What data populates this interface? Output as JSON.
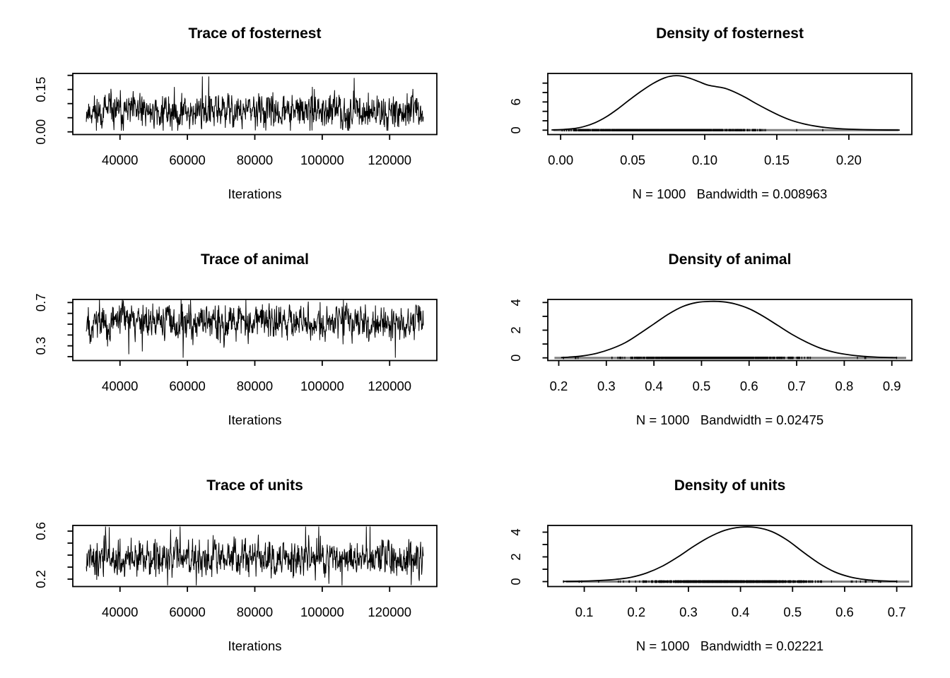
{
  "figure": {
    "background": "#ffffff",
    "line_color": "#000000",
    "rug_line_color": "#7f7f7f",
    "text_color": "#000000"
  },
  "chart_data": [
    {
      "id": "trace-fosternest",
      "type": "line",
      "kind": "trace",
      "title": "Trace of fosternest",
      "xlabel": "Iterations",
      "grid": false,
      "xlim": [
        26000,
        134000
      ],
      "ylim": [
        -0.0095,
        0.20675
      ],
      "x_ticks": [
        40000,
        60000,
        80000,
        100000,
        120000
      ],
      "x_tick_labels": [
        "40000",
        "60000",
        "80000",
        "100000",
        "120000"
      ],
      "y_ticks": [
        0.0,
        0.05,
        0.1,
        0.15,
        0.2
      ],
      "y_tick_labels": [
        "0.00",
        "",
        "",
        "0.15",
        ""
      ],
      "series_stats": {
        "n": 1000,
        "x_start": 30000,
        "x_end": 130000,
        "mean": 0.072,
        "spread": 0.058,
        "min": 0.004,
        "max": 0.196,
        "autocorr": 0.25,
        "seed": 11
      }
    },
    {
      "id": "density-fosternest",
      "type": "line",
      "kind": "density",
      "title": "Density of fosternest",
      "sublabel": "N = 1000   Bandwidth = 0.008963",
      "n": 1000,
      "bandwidth": 0.008963,
      "grid": false,
      "xlim": [
        -0.0089,
        0.2437
      ],
      "ylim": [
        -0.93,
        12.06
      ],
      "x_ticks": [
        0.0,
        0.05,
        0.1,
        0.15,
        0.2
      ],
      "x_tick_labels": [
        "0.00",
        "0.05",
        "0.10",
        "0.15",
        "0.20"
      ],
      "y_ticks": [
        0,
        2,
        4,
        6,
        8,
        10
      ],
      "y_tick_labels": [
        "0",
        "",
        "",
        "6",
        "",
        ""
      ],
      "curve": [
        [
          -0.006,
          0.05
        ],
        [
          0.0,
          0.12
        ],
        [
          0.008,
          0.3
        ],
        [
          0.016,
          0.75
        ],
        [
          0.024,
          1.6
        ],
        [
          0.032,
          2.9
        ],
        [
          0.04,
          4.6
        ],
        [
          0.048,
          6.5
        ],
        [
          0.056,
          8.3
        ],
        [
          0.064,
          9.9
        ],
        [
          0.072,
          11.1
        ],
        [
          0.078,
          11.55
        ],
        [
          0.084,
          11.5
        ],
        [
          0.09,
          11.0
        ],
        [
          0.096,
          10.3
        ],
        [
          0.102,
          9.6
        ],
        [
          0.108,
          9.25
        ],
        [
          0.114,
          8.9
        ],
        [
          0.12,
          8.2
        ],
        [
          0.128,
          7.0
        ],
        [
          0.136,
          5.6
        ],
        [
          0.144,
          4.3
        ],
        [
          0.152,
          3.1
        ],
        [
          0.16,
          2.1
        ],
        [
          0.168,
          1.4
        ],
        [
          0.176,
          0.9
        ],
        [
          0.184,
          0.55
        ],
        [
          0.192,
          0.35
        ],
        [
          0.2,
          0.22
        ],
        [
          0.21,
          0.12
        ],
        [
          0.22,
          0.06
        ],
        [
          0.235,
          0.02
        ]
      ],
      "rug": {
        "n": 1000,
        "mean": 0.072,
        "spread": 0.058,
        "min": 0.001,
        "max": 0.205,
        "seed": 22
      },
      "rug_line_span": [
        -0.005,
        0.2345
      ]
    },
    {
      "id": "trace-animal",
      "type": "line",
      "kind": "trace",
      "title": "Trace of animal",
      "xlabel": "Iterations",
      "grid": false,
      "xlim": [
        26000,
        134000
      ],
      "ylim": [
        0.1641,
        0.7284
      ],
      "x_ticks": [
        40000,
        60000,
        80000,
        100000,
        120000
      ],
      "x_tick_labels": [
        "40000",
        "60000",
        "80000",
        "100000",
        "120000"
      ],
      "y_ticks": [
        0.2,
        0.3,
        0.4,
        0.5,
        0.6,
        0.7
      ],
      "y_tick_labels": [
        "",
        "0.3",
        "",
        "",
        "",
        "0.7"
      ],
      "series_stats": {
        "n": 1000,
        "x_start": 30000,
        "x_end": 130000,
        "mean": 0.52,
        "spread": 0.155,
        "min": 0.19,
        "max": 0.732,
        "autocorr": 0.25,
        "seed": 33
      }
    },
    {
      "id": "density-animal",
      "type": "line",
      "kind": "density",
      "title": "Density of animal",
      "sublabel": "N = 1000   Bandwidth = 0.02475",
      "n": 1000,
      "bandwidth": 0.02475,
      "grid": false,
      "xlim": [
        0.177,
        0.942
      ],
      "ylim": [
        -0.194,
        4.22
      ],
      "x_ticks": [
        0.2,
        0.3,
        0.4,
        0.5,
        0.6,
        0.7,
        0.8,
        0.9
      ],
      "x_tick_labels": [
        "0.2",
        "0.3",
        "0.4",
        "0.5",
        "0.6",
        "0.7",
        "0.8",
        "0.9"
      ],
      "y_ticks": [
        0,
        1,
        2,
        3,
        4
      ],
      "y_tick_labels": [
        "0",
        "",
        "2",
        "",
        "4"
      ],
      "curve": [
        [
          0.206,
          0.02
        ],
        [
          0.22,
          0.05
        ],
        [
          0.25,
          0.14
        ],
        [
          0.28,
          0.33
        ],
        [
          0.31,
          0.65
        ],
        [
          0.34,
          1.1
        ],
        [
          0.37,
          1.75
        ],
        [
          0.4,
          2.45
        ],
        [
          0.43,
          3.15
        ],
        [
          0.46,
          3.7
        ],
        [
          0.49,
          4.0
        ],
        [
          0.52,
          4.08
        ],
        [
          0.545,
          4.05
        ],
        [
          0.57,
          3.9
        ],
        [
          0.6,
          3.55
        ],
        [
          0.63,
          3.0
        ],
        [
          0.66,
          2.35
        ],
        [
          0.69,
          1.7
        ],
        [
          0.72,
          1.15
        ],
        [
          0.75,
          0.7
        ],
        [
          0.78,
          0.4
        ],
        [
          0.81,
          0.22
        ],
        [
          0.84,
          0.11
        ],
        [
          0.87,
          0.05
        ],
        [
          0.9,
          0.02
        ],
        [
          0.91,
          0.015
        ]
      ],
      "rug": {
        "n": 1000,
        "mean": 0.52,
        "spread": 0.165,
        "min": 0.21,
        "max": 0.91,
        "seed": 44
      },
      "rug_line_span": [
        0.191,
        0.93
      ]
    },
    {
      "id": "trace-units",
      "type": "line",
      "kind": "trace",
      "title": "Trace of units",
      "xlabel": "Iterations",
      "grid": false,
      "xlim": [
        26000,
        134000
      ],
      "ylim": [
        0.1382,
        0.6471
      ],
      "x_ticks": [
        40000,
        60000,
        80000,
        100000,
        120000
      ],
      "x_tick_labels": [
        "40000",
        "60000",
        "80000",
        "100000",
        "120000"
      ],
      "y_ticks": [
        0.2,
        0.3,
        0.4,
        0.5,
        0.6
      ],
      "y_tick_labels": [
        "0.2",
        "",
        "",
        "",
        "0.6"
      ],
      "series_stats": {
        "n": 1000,
        "x_start": 30000,
        "x_end": 130000,
        "mean": 0.375,
        "spread": 0.14,
        "min": 0.148,
        "max": 0.638,
        "autocorr": 0.25,
        "seed": 55
      }
    },
    {
      "id": "density-units",
      "type": "line",
      "kind": "density",
      "title": "Density of units",
      "sublabel": "N = 1000   Bandwidth = 0.02221",
      "n": 1000,
      "bandwidth": 0.02221,
      "grid": false,
      "xlim": [
        0.03,
        0.729
      ],
      "ylim": [
        -0.4,
        4.543
      ],
      "x_ticks": [
        0.1,
        0.2,
        0.3,
        0.4,
        0.5,
        0.6,
        0.7
      ],
      "x_tick_labels": [
        "0.1",
        "0.2",
        "0.3",
        "0.4",
        "0.5",
        "0.6",
        "0.7"
      ],
      "y_ticks": [
        0,
        1,
        2,
        3,
        4
      ],
      "y_tick_labels": [
        "0",
        "",
        "2",
        "",
        "4"
      ],
      "curve": [
        [
          0.06,
          0.01
        ],
        [
          0.1,
          0.04
        ],
        [
          0.13,
          0.09
        ],
        [
          0.16,
          0.18
        ],
        [
          0.19,
          0.35
        ],
        [
          0.22,
          0.7
        ],
        [
          0.25,
          1.25
        ],
        [
          0.28,
          2.0
        ],
        [
          0.31,
          2.85
        ],
        [
          0.34,
          3.6
        ],
        [
          0.37,
          4.15
        ],
        [
          0.4,
          4.4
        ],
        [
          0.43,
          4.38
        ],
        [
          0.46,
          4.05
        ],
        [
          0.49,
          3.35
        ],
        [
          0.52,
          2.4
        ],
        [
          0.55,
          1.5
        ],
        [
          0.58,
          0.8
        ],
        [
          0.61,
          0.38
        ],
        [
          0.64,
          0.16
        ],
        [
          0.67,
          0.06
        ],
        [
          0.7,
          0.02
        ]
      ],
      "rug": {
        "n": 1000,
        "mean": 0.38,
        "spread": 0.15,
        "min": 0.06,
        "max": 0.7,
        "seed": 66
      },
      "rug_line_span": [
        0.065,
        0.724
      ]
    }
  ]
}
